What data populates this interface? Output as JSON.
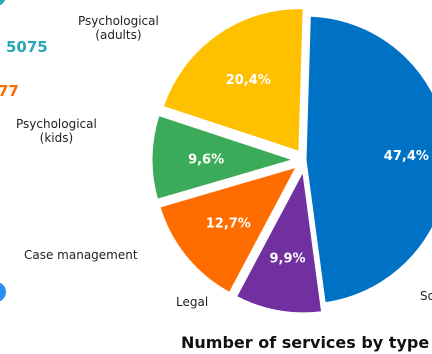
{
  "left_fragments": [
    {
      "text": "5075",
      "color": "#2aa7b7"
    },
    {
      "text": "77",
      "color": "#ff6a00"
    }
  ],
  "chart_data": {
    "type": "pie",
    "title": "Number of services by type",
    "slices": [
      {
        "label": "So",
        "value": 47.4,
        "value_label": "47,4%",
        "color": "#0072c6"
      },
      {
        "label": "Legal",
        "value": 9.9,
        "value_label": "9,9%",
        "color": "#7030a0"
      },
      {
        "label": "Case management",
        "value": 12.7,
        "value_label": "12,7%",
        "color": "#ff6d00"
      },
      {
        "label": "Psychological (kids)",
        "value": 9.6,
        "value_label": "9,6%",
        "color": "#3cab59"
      },
      {
        "label": "Psychological (adults)",
        "value": 20.4,
        "value_label": "20,4%",
        "color": "#ffc000"
      }
    ]
  }
}
